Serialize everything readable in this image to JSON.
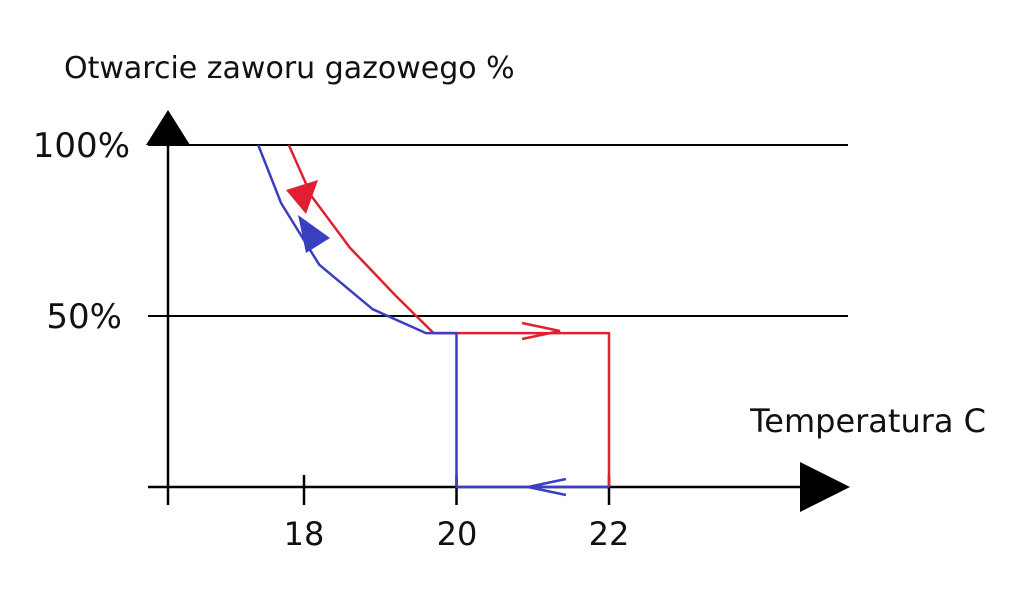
{
  "chart_data": {
    "type": "line",
    "ylabel": "Otwarcie zaworu gazowego %",
    "xlabel": "Temperatura C",
    "x_ticks": [
      "18",
      "20",
      "22"
    ],
    "y_ticks": [
      "100%",
      "50%"
    ],
    "xlim": [
      16.2,
      22
    ],
    "ylim": [
      0,
      100
    ],
    "grid": "horizontal at 50% and 100%",
    "colors": {
      "red": "#e02030",
      "blue": "#3a3fbf",
      "axis": "#000000"
    },
    "series": [
      {
        "color": "red",
        "direction": "heating (down the curve, then right, then down)",
        "x": [
          17.8,
          18.1,
          18.6,
          19.2,
          19.7,
          20,
          22,
          22
        ],
        "y": [
          100,
          85,
          70,
          56,
          45,
          45,
          45,
          0
        ]
      },
      {
        "color": "blue",
        "direction": "cooling (left along baseline, up, then up the curve)",
        "x": [
          22,
          20,
          20,
          19.6,
          18.9,
          18.2,
          17.7,
          17.4
        ],
        "y": [
          0,
          0,
          45,
          45,
          52,
          65,
          83,
          100
        ]
      }
    ]
  }
}
